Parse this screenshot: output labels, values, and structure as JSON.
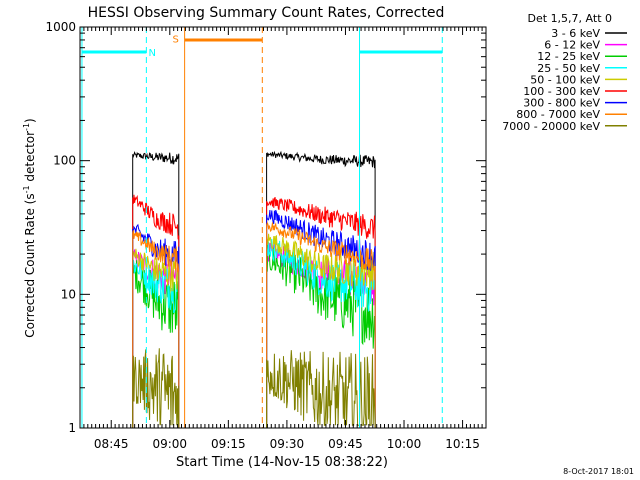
{
  "chart_data": {
    "type": "line",
    "title": "HESSI Observing Summary Count Rates, Corrected",
    "xlabel": "Start Time (14-Nov-15 08:38:22)",
    "ylabel_main": "Corrected Count Rate (s",
    "ylabel_sup1": "-1",
    "ylabel_mid": " detector",
    "ylabel_sup2": "-1",
    "ylabel_end": ")",
    "x_range_minutes": [
      0,
      104
    ],
    "y_scale": "log",
    "ylim": [
      1,
      1000
    ],
    "x_ticks": [
      {
        "m": 8,
        "label": "08:45"
      },
      {
        "m": 23,
        "label": "09:00"
      },
      {
        "m": 38,
        "label": "09:15"
      },
      {
        "m": 53,
        "label": "09:30"
      },
      {
        "m": 68,
        "label": "09:45"
      },
      {
        "m": 83,
        "label": "10:00"
      },
      {
        "m": 98,
        "label": "10:15"
      }
    ],
    "y_ticks": [
      {
        "v": 1,
        "label": "1"
      },
      {
        "v": 10,
        "label": "10"
      },
      {
        "v": 100,
        "label": "100"
      },
      {
        "v": 1000,
        "label": "1000"
      }
    ],
    "legend_header": "Det 1,5,7, Att 0",
    "grid": false,
    "legend_placement": "outside-right",
    "series": [
      {
        "name": "3 - 6 keV",
        "color": "#000000",
        "seg1": [
          110,
          106,
          104
        ],
        "seg2": [
          112,
          102,
          98
        ]
      },
      {
        "name": "6 - 12 keV",
        "color": "#ff00ff",
        "seg1": [
          19,
          14,
          13
        ],
        "seg2": [
          21,
          14,
          12
        ]
      },
      {
        "name": "12 - 25 keV",
        "color": "#00cc00",
        "seg1": [
          15,
          9,
          7.5
        ],
        "seg2": [
          19,
          10,
          7
        ]
      },
      {
        "name": "25 - 50 keV",
        "color": "#00ffff",
        "seg1": [
          17,
          12,
          11
        ],
        "seg2": [
          23,
          13,
          11
        ]
      },
      {
        "name": "50 - 100 keV",
        "color": "#cccc00",
        "seg1": [
          20,
          15,
          14
        ],
        "seg2": [
          26,
          16,
          15
        ]
      },
      {
        "name": "100 - 300 keV",
        "color": "#ff0000",
        "seg1": [
          52,
          37,
          32
        ],
        "seg2": [
          50,
          39,
          31
        ]
      },
      {
        "name": "300 - 800 keV",
        "color": "#0000ff",
        "seg1": [
          31,
          22,
          19
        ],
        "seg2": [
          40,
          26,
          19
        ]
      },
      {
        "name": "800 - 7000 keV",
        "color": "#ff8000",
        "seg1": [
          28,
          21,
          18
        ],
        "seg2": [
          33,
          23,
          17
        ]
      },
      {
        "name": "7000 - 20000 keV",
        "color": "#808000",
        "seg1": [
          2.4,
          2.0,
          1.6
        ],
        "seg2": [
          2.6,
          1.8,
          1.3
        ]
      }
    ],
    "data_segments_minutes": [
      [
        13.5,
        25.3
      ],
      [
        47.8,
        75.6
      ]
    ],
    "flag_bars": [
      {
        "label": "",
        "color": "#00ffff",
        "x0": 0.5,
        "x1": 17.0,
        "y": 650
      },
      {
        "label": "S",
        "color": "#ff8000",
        "x0": 26.8,
        "x1": 46.7,
        "y": 800
      },
      {
        "label": "",
        "color": "#00ffff",
        "x0": 71.6,
        "x1": 92.8,
        "y": 650
      }
    ],
    "flag_labels": [
      {
        "text": "N",
        "color": "#00ffff",
        "m": 18.5,
        "y": 650
      },
      {
        "text": "S",
        "color": "#ff8000",
        "m": 24.5,
        "y": 820
      }
    ],
    "vlines": [
      {
        "m": 0.5,
        "color": "#00ffff",
        "dashed": false
      },
      {
        "m": 17.0,
        "color": "#00ffff",
        "dashed": true
      },
      {
        "m": 26.8,
        "color": "#ff8000",
        "dashed": false
      },
      {
        "m": 46.7,
        "color": "#ff8000",
        "dashed": true
      },
      {
        "m": 71.6,
        "color": "#00ffff",
        "dashed": false
      },
      {
        "m": 92.8,
        "color": "#00ffff",
        "dashed": true
      }
    ],
    "timestamp": "8-Oct-2017 18:01"
  }
}
